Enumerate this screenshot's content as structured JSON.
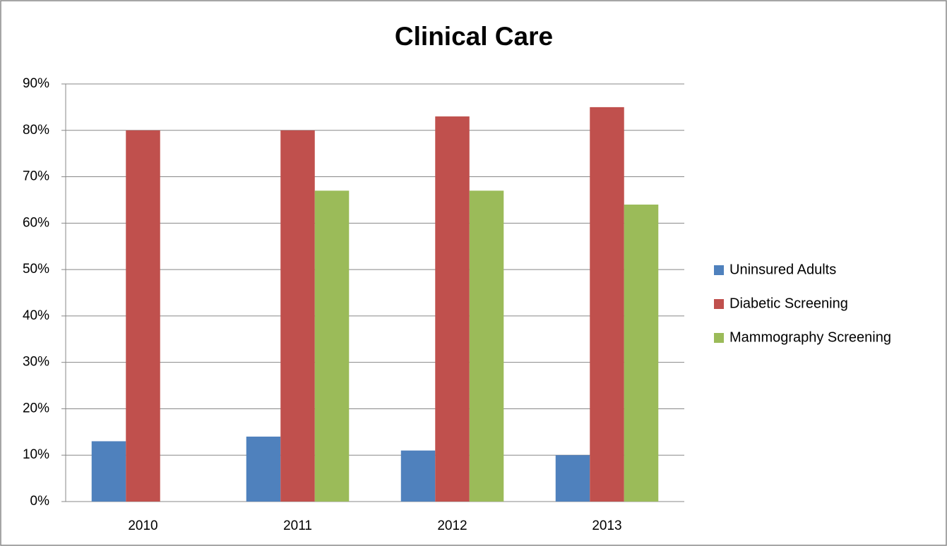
{
  "chart_data": {
    "type": "bar",
    "title": "Clinical Care",
    "categories": [
      "2010",
      "2011",
      "2012",
      "2013"
    ],
    "series": [
      {
        "name": "Uninsured Adults",
        "color": "#4f81bd",
        "values": [
          13,
          14,
          11,
          10
        ]
      },
      {
        "name": "Diabetic Screening",
        "color": "#c0504d",
        "values": [
          80,
          80,
          83,
          85
        ]
      },
      {
        "name": "Mammography Screening",
        "color": "#9bbb59",
        "values": [
          null,
          67,
          67,
          64
        ]
      }
    ],
    "ylim": [
      0,
      90
    ],
    "yticks": [
      {
        "value": 0,
        "label": "0%"
      },
      {
        "value": 10,
        "label": "10%"
      },
      {
        "value": 20,
        "label": "20%"
      },
      {
        "value": 30,
        "label": "30%"
      },
      {
        "value": 40,
        "label": "40%"
      },
      {
        "value": 50,
        "label": "50%"
      },
      {
        "value": 60,
        "label": "60%"
      },
      {
        "value": 70,
        "label": "70%"
      },
      {
        "value": 80,
        "label": "80%"
      },
      {
        "value": 90,
        "label": "90%"
      }
    ],
    "grid": true,
    "legend": "right"
  }
}
